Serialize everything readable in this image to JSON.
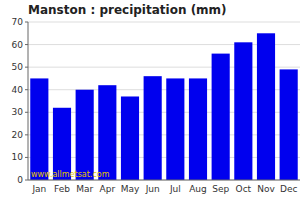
{
  "chart_data": {
    "type": "bar",
    "title": "Manston : precipitation (mm)",
    "categories": [
      "Jan",
      "Feb",
      "Mar",
      "Apr",
      "May",
      "Jun",
      "Jul",
      "Aug",
      "Sep",
      "Oct",
      "Nov",
      "Dec"
    ],
    "values": [
      45,
      32,
      40,
      42,
      37,
      46,
      45,
      45,
      56,
      61,
      65,
      49
    ],
    "color": "#0000EE",
    "ylim": [
      0,
      70
    ],
    "yticks": [
      0,
      10,
      20,
      30,
      40,
      50,
      60,
      70
    ],
    "grid": true,
    "annotations": [
      "www.allmetsat.com"
    ]
  }
}
